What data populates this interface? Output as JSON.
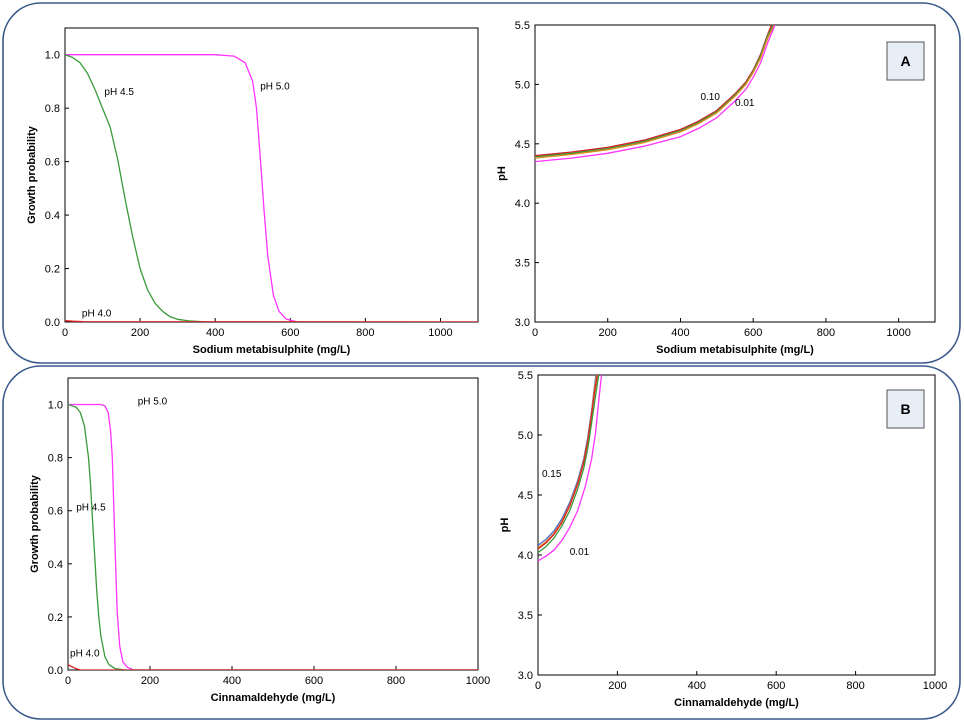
{
  "panels": [
    {
      "label": "A"
    },
    {
      "label": "B"
    }
  ],
  "colors": {
    "frame": "#3a5a8c",
    "label_box_fill": "#e8eef6",
    "magenta": "#ff33ff",
    "green": "#3a9a3a",
    "red": "#e02020",
    "orange": "#e08a20",
    "blue": "#4a6ad0"
  },
  "chart_data": [
    {
      "type": "line",
      "xlabel": "Sodium metabisulphite (mg/L)",
      "ylabel": "Growth probability",
      "xlim": [
        0,
        1100
      ],
      "ylim": [
        0,
        1.1
      ],
      "xticks": [
        "0",
        "200",
        "400",
        "600",
        "800",
        "1000"
      ],
      "yticks": [
        "0.0",
        "0.2",
        "0.4",
        "0.6",
        "0.8",
        "1.0"
      ],
      "series": [
        {
          "name": "pH 5.0",
          "color": "#ff33ff",
          "x": [
            0,
            400,
            450,
            480,
            500,
            510,
            520,
            530,
            540,
            555,
            570,
            590,
            620,
            1100
          ],
          "y": [
            1.0,
            1.0,
            0.995,
            0.97,
            0.9,
            0.8,
            0.62,
            0.42,
            0.25,
            0.1,
            0.04,
            0.01,
            0.0,
            0.0
          ]
        },
        {
          "name": "pH 4.5",
          "color": "#3a9a3a",
          "x": [
            0,
            20,
            40,
            60,
            80,
            100,
            120,
            140,
            160,
            180,
            200,
            220,
            240,
            260,
            280,
            300,
            330,
            380,
            1100
          ],
          "y": [
            1.0,
            0.99,
            0.97,
            0.93,
            0.87,
            0.8,
            0.73,
            0.61,
            0.46,
            0.32,
            0.2,
            0.12,
            0.07,
            0.04,
            0.02,
            0.01,
            0.004,
            0.0,
            0.0
          ]
        },
        {
          "name": "pH 4.0",
          "color": "#e02020",
          "x": [
            0,
            20,
            50,
            1100
          ],
          "y": [
            0.005,
            0.003,
            0.001,
            0.0
          ]
        }
      ],
      "annotations": [
        {
          "text": "pH 4.5",
          "x": 105,
          "y": 0.85
        },
        {
          "text": "pH 5.0",
          "x": 520,
          "y": 0.87
        },
        {
          "text": "pH 4.0",
          "x": 45,
          "y": 0.02
        }
      ]
    },
    {
      "type": "line",
      "xlabel": "Sodium metabisulphite (mg/L)",
      "ylabel": "pH",
      "xlim": [
        0,
        1100
      ],
      "ylim": [
        3.0,
        5.5
      ],
      "xticks": [
        "0",
        "200",
        "400",
        "600",
        "800",
        "1000"
      ],
      "yticks": [
        "3.0",
        "3.5",
        "4.0",
        "4.5",
        "5.0",
        "5.5"
      ],
      "series": [
        {
          "color": "#4a6ad0",
          "x": [
            0,
            100,
            200,
            300,
            400,
            450,
            500,
            550,
            580,
            600,
            620,
            640,
            652
          ],
          "y": [
            4.4,
            4.43,
            4.47,
            4.53,
            4.62,
            4.69,
            4.78,
            4.92,
            5.02,
            5.12,
            5.25,
            5.42,
            5.5
          ]
        },
        {
          "color": "#e02020",
          "x": [
            0,
            100,
            200,
            300,
            400,
            450,
            500,
            550,
            580,
            600,
            620,
            640,
            650
          ],
          "y": [
            4.4,
            4.43,
            4.47,
            4.53,
            4.62,
            4.69,
            4.78,
            4.92,
            5.02,
            5.12,
            5.25,
            5.42,
            5.5
          ]
        },
        {
          "color": "#3a9a3a",
          "x": [
            0,
            100,
            200,
            300,
            400,
            450,
            500,
            550,
            580,
            600,
            620,
            640,
            655
          ],
          "y": [
            4.39,
            4.42,
            4.46,
            4.52,
            4.61,
            4.68,
            4.77,
            4.91,
            5.01,
            5.11,
            5.24,
            5.41,
            5.5
          ]
        },
        {
          "color": "#e08a20",
          "x": [
            0,
            100,
            200,
            300,
            400,
            450,
            500,
            550,
            580,
            600,
            620,
            640,
            658
          ],
          "y": [
            4.38,
            4.41,
            4.45,
            4.51,
            4.6,
            4.67,
            4.76,
            4.9,
            5.0,
            5.1,
            5.22,
            5.39,
            5.5
          ]
        },
        {
          "color": "#ff33ff",
          "x": [
            0,
            100,
            200,
            300,
            400,
            450,
            500,
            550,
            580,
            600,
            620,
            640,
            660
          ],
          "y": [
            4.35,
            4.38,
            4.42,
            4.48,
            4.56,
            4.63,
            4.72,
            4.86,
            4.96,
            5.06,
            5.18,
            5.35,
            5.5
          ]
        }
      ],
      "annotations": [
        {
          "text": "0.10",
          "x": 455,
          "y": 4.87
        },
        {
          "text": "0.01",
          "x": 550,
          "y": 4.82
        }
      ]
    },
    {
      "type": "line",
      "xlabel": "Cinnamaldehyde (mg/L)",
      "ylabel": "Growth probability",
      "xlim": [
        0,
        1000
      ],
      "ylim": [
        0,
        1.1
      ],
      "xticks": [
        "0",
        "200",
        "400",
        "600",
        "800",
        "1000"
      ],
      "yticks": [
        "0.0",
        "0.2",
        "0.4",
        "0.6",
        "0.8",
        "1.0"
      ],
      "series": [
        {
          "name": "pH 5.0",
          "color": "#ff33ff",
          "x": [
            0,
            80,
            90,
            98,
            104,
            108,
            112,
            116,
            120,
            126,
            134,
            145,
            160,
            1000
          ],
          "y": [
            1.0,
            1.0,
            0.995,
            0.97,
            0.9,
            0.8,
            0.6,
            0.4,
            0.22,
            0.09,
            0.03,
            0.01,
            0.0,
            0.0
          ]
        },
        {
          "name": "pH 4.5",
          "color": "#3a9a3a",
          "x": [
            0,
            20,
            30,
            40,
            50,
            55,
            60,
            65,
            70,
            75,
            80,
            90,
            100,
            115,
            140,
            1000
          ],
          "y": [
            1.0,
            0.99,
            0.97,
            0.92,
            0.8,
            0.7,
            0.56,
            0.43,
            0.3,
            0.2,
            0.13,
            0.05,
            0.02,
            0.005,
            0.0,
            0.0
          ]
        },
        {
          "name": "pH 4.0",
          "color": "#e02020",
          "x": [
            0,
            10,
            20,
            30,
            1000
          ],
          "y": [
            0.02,
            0.012,
            0.005,
            0.0,
            0.0
          ]
        }
      ],
      "annotations": [
        {
          "text": "pH 5.0",
          "x": 170,
          "y": 1.0
        },
        {
          "text": "pH 4.5",
          "x": 20,
          "y": 0.6
        },
        {
          "text": "pH 4.0",
          "x": 5,
          "y": 0.05
        }
      ]
    },
    {
      "type": "line",
      "xlabel": "Cinnamaldehyde (mg/L)",
      "ylabel": "pH",
      "xlim": [
        0,
        1000
      ],
      "ylim": [
        3.0,
        5.5
      ],
      "xticks": [
        "0",
        "200",
        "400",
        "600",
        "800",
        "1000"
      ],
      "yticks": [
        "3.0",
        "3.5",
        "4.0",
        "4.5",
        "5.0",
        "5.5"
      ],
      "series": [
        {
          "color": "#4a6ad0",
          "x": [
            0,
            20,
            40,
            60,
            80,
            100,
            115,
            125,
            135,
            142,
            146
          ],
          "y": [
            4.08,
            4.13,
            4.2,
            4.3,
            4.44,
            4.62,
            4.8,
            4.97,
            5.2,
            5.4,
            5.5
          ]
        },
        {
          "color": "#e08a20",
          "x": [
            0,
            20,
            40,
            60,
            80,
            100,
            115,
            125,
            135,
            142,
            148
          ],
          "y": [
            4.06,
            4.11,
            4.18,
            4.28,
            4.42,
            4.6,
            4.78,
            4.95,
            5.18,
            5.38,
            5.5
          ]
        },
        {
          "color": "#e02020",
          "x": [
            0,
            20,
            40,
            60,
            80,
            100,
            115,
            125,
            135,
            143,
            150
          ],
          "y": [
            4.05,
            4.1,
            4.17,
            4.27,
            4.41,
            4.59,
            4.77,
            4.94,
            5.17,
            5.37,
            5.5
          ]
        },
        {
          "color": "#3a9a3a",
          "x": [
            0,
            20,
            40,
            60,
            80,
            100,
            115,
            125,
            135,
            145,
            153
          ],
          "y": [
            4.02,
            4.07,
            4.14,
            4.24,
            4.37,
            4.55,
            4.72,
            4.88,
            5.1,
            5.33,
            5.5
          ]
        },
        {
          "color": "#ff33ff",
          "x": [
            0,
            20,
            40,
            60,
            80,
            100,
            120,
            135,
            145,
            152,
            160
          ],
          "y": [
            3.95,
            3.99,
            4.04,
            4.12,
            4.23,
            4.37,
            4.58,
            4.8,
            5.02,
            5.25,
            5.5
          ]
        }
      ],
      "annotations": [
        {
          "text": "0.15",
          "x": 10,
          "y": 4.65
        },
        {
          "text": "0.01",
          "x": 80,
          "y": 4.0
        }
      ]
    }
  ]
}
